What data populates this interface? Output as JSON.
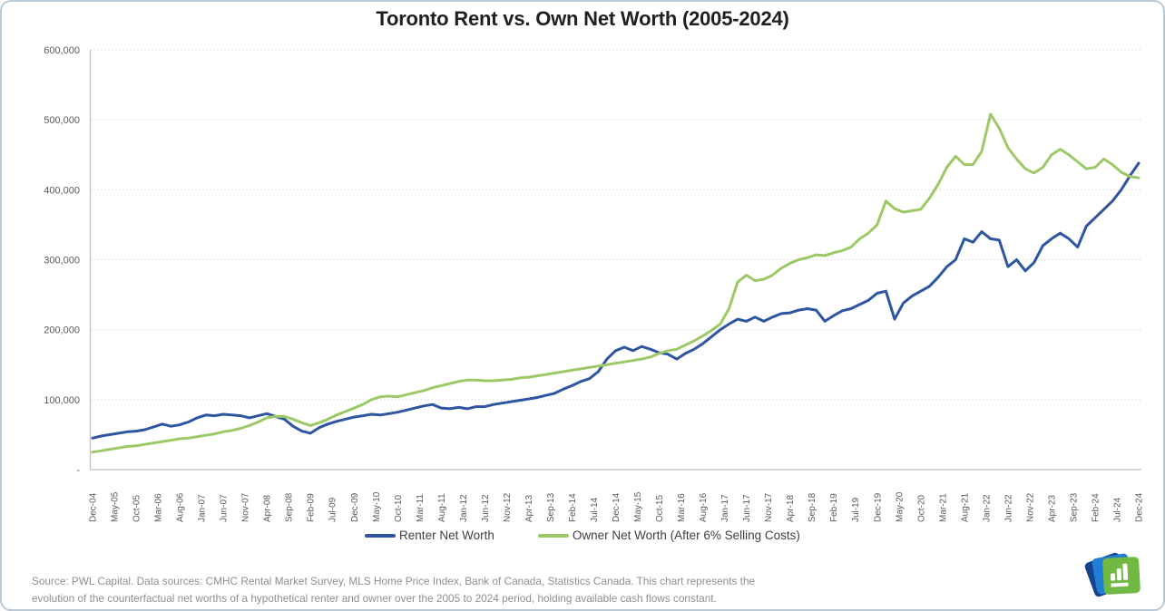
{
  "page": {
    "title": "Toronto Rent vs. Own Net Worth (2005-2024)"
  },
  "legend": [
    {
      "label": "Renter Net Worth",
      "color": "#2E55A1"
    },
    {
      "label": "Owner Net Worth (After 6% Selling Costs)",
      "color": "#9CC965"
    }
  ],
  "footer": {
    "line1": "Source: PWL Capital. Data sources: CMHC Rental Market Survey, MLS Home Price Index, Bank of Canada, Statistics Canada. This chart represents the",
    "line2": "evolution of the counterfactual net worths of a hypothetical renter and owner over the 2005 to 2024 period, holding available cash flows constant."
  },
  "logo": {
    "name": "pwl-capital-logo",
    "back_color": "#16418C",
    "middle_color": "#1F7FD4",
    "front_color": "#72B944",
    "glyph": "bar-chart-icon"
  },
  "colors": {
    "gridline": "#d9d9d9",
    "axis_spine": "#bfbfbf",
    "tick_label": "#595959"
  },
  "chart_data": {
    "type": "line",
    "title": "Toronto Rent vs. Own Net Worth (2005-2024)",
    "legend_position": "bottom",
    "grid": "horizontal dotted",
    "x_axis": {
      "start": "Dec-04",
      "end": "Dec-24",
      "tick_interval_months": 5,
      "tick_labels": [
        "Dec-04",
        "May-05",
        "Oct-05",
        "Mar-06",
        "Aug-06",
        "Jan-07",
        "Jun-07",
        "Nov-07",
        "Apr-08",
        "Sep-08",
        "Feb-09",
        "Jul-09",
        "Dec-09",
        "May-10",
        "Oct-10",
        "Mar-11",
        "Aug-11",
        "Jan-12",
        "Jun-12",
        "Nov-12",
        "Apr-13",
        "Sep-13",
        "Feb-14",
        "Jul-14",
        "Dec-14",
        "May-15",
        "Oct-15",
        "Mar-16",
        "Aug-16",
        "Jan-17",
        "Jun-17",
        "Nov-17",
        "Apr-18",
        "Sep-18",
        "Feb-19",
        "Jul-19",
        "Dec-19",
        "May-20",
        "Oct-20",
        "Mar-21",
        "Aug-21",
        "Jan-22",
        "Jun-22",
        "Nov-22",
        "Apr-23",
        "Sep-23",
        "Feb-24",
        "Jul-24",
        "Dec-24"
      ]
    },
    "y_axis": {
      "min": 0,
      "max": 600000,
      "tick_interval": 100000,
      "tick_labels_top_to_bottom": [
        "600,000",
        "500,000",
        "400,000",
        "300,000",
        "200,000",
        "100,000",
        "-"
      ]
    },
    "sampling": "net worth in CAD, sampled every 2 months from Dec-2004 (index 0) to Dec-2024 (index 120); values estimated from gridlines",
    "x_step_months": 2,
    "total_months": 240,
    "series": [
      {
        "name": "Renter Net Worth",
        "color": "#2E55A1",
        "values": [
          45000,
          48000,
          50000,
          52000,
          54000,
          55000,
          57000,
          61000,
          65000,
          62000,
          64000,
          68000,
          74000,
          78000,
          77000,
          79000,
          78000,
          77000,
          74000,
          77000,
          80000,
          76000,
          72000,
          62000,
          55000,
          52000,
          60000,
          65000,
          69000,
          72000,
          75000,
          77000,
          79000,
          78000,
          80000,
          82000,
          85000,
          88000,
          91000,
          93000,
          88000,
          87000,
          89000,
          87000,
          90000,
          90000,
          93000,
          95000,
          97000,
          99000,
          101000,
          103000,
          106000,
          109000,
          115000,
          120000,
          126000,
          130000,
          140000,
          158000,
          170000,
          175000,
          170000,
          176000,
          172000,
          167000,
          165000,
          158000,
          166000,
          172000,
          180000,
          190000,
          200000,
          208000,
          215000,
          212000,
          218000,
          212000,
          218000,
          223000,
          224000,
          228000,
          230000,
          228000,
          212000,
          220000,
          227000,
          230000,
          236000,
          242000,
          252000,
          255000,
          215000,
          238000,
          248000,
          255000,
          262000,
          275000,
          290000,
          300000,
          330000,
          325000,
          340000,
          330000,
          328000,
          290000,
          300000,
          284000,
          296000,
          320000,
          330000,
          338000,
          330000,
          318000,
          348000,
          360000,
          372000,
          384000,
          400000,
          420000,
          438000
        ]
      },
      {
        "name": "Owner Net Worth (After 6% Selling Costs)",
        "color": "#9CC965",
        "values": [
          25000,
          27000,
          29000,
          31000,
          33000,
          34000,
          36000,
          38000,
          40000,
          42000,
          44000,
          45000,
          47000,
          49000,
          51000,
          54000,
          56000,
          59000,
          63000,
          68000,
          74000,
          76000,
          76000,
          72000,
          67000,
          63000,
          67000,
          72000,
          78000,
          83000,
          88000,
          93000,
          100000,
          104000,
          105000,
          104000,
          107000,
          110000,
          113000,
          117000,
          120000,
          123000,
          126000,
          128000,
          128000,
          127000,
          127000,
          128000,
          129000,
          131000,
          132000,
          134000,
          136000,
          138000,
          140000,
          142000,
          144000,
          146000,
          148000,
          150000,
          152000,
          154000,
          156000,
          158000,
          161000,
          166000,
          170000,
          172000,
          178000,
          184000,
          191000,
          199000,
          208000,
          230000,
          268000,
          278000,
          270000,
          272000,
          278000,
          288000,
          295000,
          300000,
          303000,
          307000,
          306000,
          310000,
          313000,
          318000,
          330000,
          338000,
          350000,
          384000,
          373000,
          368000,
          370000,
          372000,
          388000,
          408000,
          432000,
          448000,
          436000,
          436000,
          455000,
          508000,
          488000,
          460000,
          444000,
          430000,
          424000,
          432000,
          450000,
          458000,
          450000,
          440000,
          430000,
          432000,
          444000,
          436000,
          425000,
          419000,
          417000
        ]
      }
    ]
  }
}
